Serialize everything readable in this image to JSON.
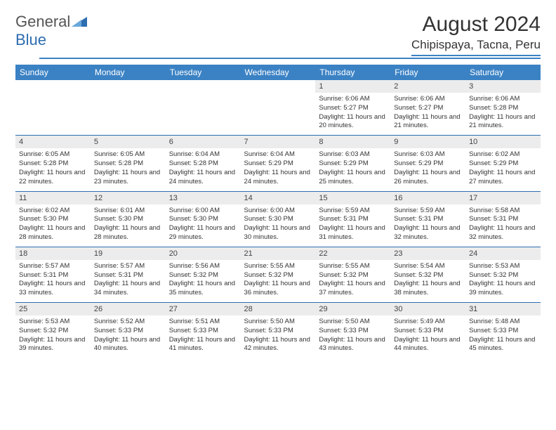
{
  "brand": {
    "part1": "General",
    "part2": "Blue"
  },
  "title": "August 2024",
  "location": "Chipispaya, Tacna, Peru",
  "colors": {
    "header_bg": "#3b82c4",
    "header_text": "#ffffff",
    "daynum_bg": "#ececec",
    "rule": "#2d6db0",
    "text": "#333333",
    "logo_gray": "#555555",
    "logo_blue": "#2d6db0"
  },
  "weekdays": [
    "Sunday",
    "Monday",
    "Tuesday",
    "Wednesday",
    "Thursday",
    "Friday",
    "Saturday"
  ],
  "first_weekday_index": 4,
  "days": [
    {
      "n": 1,
      "sunrise": "6:06 AM",
      "sunset": "5:27 PM",
      "dl": "11 hours and 20 minutes."
    },
    {
      "n": 2,
      "sunrise": "6:06 AM",
      "sunset": "5:27 PM",
      "dl": "11 hours and 21 minutes."
    },
    {
      "n": 3,
      "sunrise": "6:06 AM",
      "sunset": "5:28 PM",
      "dl": "11 hours and 21 minutes."
    },
    {
      "n": 4,
      "sunrise": "6:05 AM",
      "sunset": "5:28 PM",
      "dl": "11 hours and 22 minutes."
    },
    {
      "n": 5,
      "sunrise": "6:05 AM",
      "sunset": "5:28 PM",
      "dl": "11 hours and 23 minutes."
    },
    {
      "n": 6,
      "sunrise": "6:04 AM",
      "sunset": "5:28 PM",
      "dl": "11 hours and 24 minutes."
    },
    {
      "n": 7,
      "sunrise": "6:04 AM",
      "sunset": "5:29 PM",
      "dl": "11 hours and 24 minutes."
    },
    {
      "n": 8,
      "sunrise": "6:03 AM",
      "sunset": "5:29 PM",
      "dl": "11 hours and 25 minutes."
    },
    {
      "n": 9,
      "sunrise": "6:03 AM",
      "sunset": "5:29 PM",
      "dl": "11 hours and 26 minutes."
    },
    {
      "n": 10,
      "sunrise": "6:02 AM",
      "sunset": "5:29 PM",
      "dl": "11 hours and 27 minutes."
    },
    {
      "n": 11,
      "sunrise": "6:02 AM",
      "sunset": "5:30 PM",
      "dl": "11 hours and 28 minutes."
    },
    {
      "n": 12,
      "sunrise": "6:01 AM",
      "sunset": "5:30 PM",
      "dl": "11 hours and 28 minutes."
    },
    {
      "n": 13,
      "sunrise": "6:00 AM",
      "sunset": "5:30 PM",
      "dl": "11 hours and 29 minutes."
    },
    {
      "n": 14,
      "sunrise": "6:00 AM",
      "sunset": "5:30 PM",
      "dl": "11 hours and 30 minutes."
    },
    {
      "n": 15,
      "sunrise": "5:59 AM",
      "sunset": "5:31 PM",
      "dl": "11 hours and 31 minutes."
    },
    {
      "n": 16,
      "sunrise": "5:59 AM",
      "sunset": "5:31 PM",
      "dl": "11 hours and 32 minutes."
    },
    {
      "n": 17,
      "sunrise": "5:58 AM",
      "sunset": "5:31 PM",
      "dl": "11 hours and 32 minutes."
    },
    {
      "n": 18,
      "sunrise": "5:57 AM",
      "sunset": "5:31 PM",
      "dl": "11 hours and 33 minutes."
    },
    {
      "n": 19,
      "sunrise": "5:57 AM",
      "sunset": "5:31 PM",
      "dl": "11 hours and 34 minutes."
    },
    {
      "n": 20,
      "sunrise": "5:56 AM",
      "sunset": "5:32 PM",
      "dl": "11 hours and 35 minutes."
    },
    {
      "n": 21,
      "sunrise": "5:55 AM",
      "sunset": "5:32 PM",
      "dl": "11 hours and 36 minutes."
    },
    {
      "n": 22,
      "sunrise": "5:55 AM",
      "sunset": "5:32 PM",
      "dl": "11 hours and 37 minutes."
    },
    {
      "n": 23,
      "sunrise": "5:54 AM",
      "sunset": "5:32 PM",
      "dl": "11 hours and 38 minutes."
    },
    {
      "n": 24,
      "sunrise": "5:53 AM",
      "sunset": "5:32 PM",
      "dl": "11 hours and 39 minutes."
    },
    {
      "n": 25,
      "sunrise": "5:53 AM",
      "sunset": "5:32 PM",
      "dl": "11 hours and 39 minutes."
    },
    {
      "n": 26,
      "sunrise": "5:52 AM",
      "sunset": "5:33 PM",
      "dl": "11 hours and 40 minutes."
    },
    {
      "n": 27,
      "sunrise": "5:51 AM",
      "sunset": "5:33 PM",
      "dl": "11 hours and 41 minutes."
    },
    {
      "n": 28,
      "sunrise": "5:50 AM",
      "sunset": "5:33 PM",
      "dl": "11 hours and 42 minutes."
    },
    {
      "n": 29,
      "sunrise": "5:50 AM",
      "sunset": "5:33 PM",
      "dl": "11 hours and 43 minutes."
    },
    {
      "n": 30,
      "sunrise": "5:49 AM",
      "sunset": "5:33 PM",
      "dl": "11 hours and 44 minutes."
    },
    {
      "n": 31,
      "sunrise": "5:48 AM",
      "sunset": "5:33 PM",
      "dl": "11 hours and 45 minutes."
    }
  ],
  "labels": {
    "sunrise": "Sunrise:",
    "sunset": "Sunset:",
    "daylight": "Daylight:"
  }
}
